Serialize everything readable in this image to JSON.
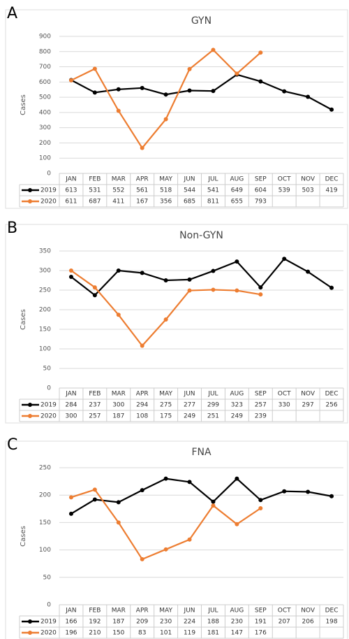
{
  "chart_data": [
    {
      "type": "line",
      "label": "A",
      "title": "GYN",
      "y_label": "Cases",
      "categories": [
        "JAN",
        "FEB",
        "MAR",
        "APR",
        "MAY",
        "JUN",
        "JUL",
        "AUG",
        "SEP",
        "OCT",
        "NOV",
        "DEC"
      ],
      "series": [
        {
          "name": "2019",
          "color": "#000000",
          "values": [
            613,
            531,
            552,
            561,
            518,
            544,
            541,
            649,
            604,
            539,
            503,
            419
          ]
        },
        {
          "name": "2020",
          "color": "#ed7d31",
          "values": [
            611,
            687,
            411,
            167,
            356,
            685,
            811,
            655,
            793,
            null,
            null,
            null
          ]
        }
      ],
      "ylim": [
        0,
        900
      ],
      "yticks": [
        0,
        100,
        200,
        300,
        400,
        500,
        600,
        700,
        800,
        900
      ],
      "grid": true
    },
    {
      "type": "line",
      "label": "B",
      "title": "Non-GYN",
      "y_label": "Cases",
      "categories": [
        "JAN",
        "FEB",
        "MAR",
        "APR",
        "MAY",
        "JUN",
        "JUL",
        "AUG",
        "SEP",
        "OCT",
        "NOV",
        "DEC"
      ],
      "series": [
        {
          "name": "2019",
          "color": "#000000",
          "values": [
            284,
            237,
            300,
            294,
            275,
            277,
            299,
            323,
            257,
            330,
            297,
            256
          ]
        },
        {
          "name": "2020",
          "color": "#ed7d31",
          "values": [
            300,
            257,
            187,
            108,
            175,
            249,
            251,
            249,
            239,
            null,
            null,
            null
          ]
        }
      ],
      "ylim": [
        0,
        350
      ],
      "yticks": [
        0,
        50,
        100,
        150,
        200,
        250,
        300,
        350
      ],
      "grid": true
    },
    {
      "type": "line",
      "label": "C",
      "title": "FNA",
      "y_label": "Cases",
      "categories": [
        "JAN",
        "FEB",
        "MAR",
        "APR",
        "MAY",
        "JUN",
        "JUL",
        "AUG",
        "SEP",
        "OCT",
        "NOV",
        "DEC"
      ],
      "series": [
        {
          "name": "2019",
          "color": "#000000",
          "values": [
            166,
            192,
            187,
            209,
            230,
            224,
            188,
            230,
            191,
            207,
            206,
            198
          ]
        },
        {
          "name": "2020",
          "color": "#ed7d31",
          "values": [
            196,
            210,
            150,
            83,
            101,
            119,
            181,
            147,
            176,
            null,
            null,
            null
          ]
        }
      ],
      "ylim": [
        0,
        250
      ],
      "yticks": [
        0,
        50,
        100,
        150,
        200,
        250
      ],
      "grid": true
    }
  ]
}
